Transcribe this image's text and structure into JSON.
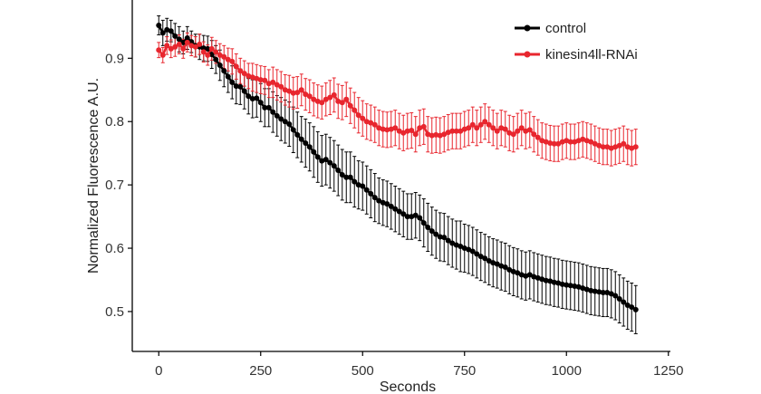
{
  "chart_data": {
    "type": "line",
    "xlabel": "Seconds",
    "ylabel": "Normalized Fluorescence A.U.",
    "xlim": [
      -65,
      1255
    ],
    "ylim": [
      0.437,
      0.992
    ],
    "xticks": [
      0,
      250,
      500,
      750,
      1000,
      1250
    ],
    "yticks": [
      0.5,
      0.6,
      0.7,
      0.8,
      0.9
    ],
    "x_tick_labels": [
      "0",
      "250",
      "500",
      "750",
      "1000",
      "1250"
    ],
    "y_tick_labels": [
      "0.5",
      "0.6",
      "0.7",
      "0.8",
      "0.9"
    ],
    "grid": false,
    "legend_position": "top-right",
    "x_step": 10,
    "x_start": 0,
    "series": [
      {
        "name": "control",
        "color": "#000000",
        "values": [
          0.952,
          0.94,
          0.945,
          0.943,
          0.935,
          0.93,
          0.925,
          0.932,
          0.926,
          0.92,
          0.918,
          0.916,
          0.915,
          0.906,
          0.898,
          0.889,
          0.88,
          0.871,
          0.862,
          0.856,
          0.855,
          0.848,
          0.84,
          0.836,
          0.837,
          0.83,
          0.822,
          0.822,
          0.815,
          0.809,
          0.804,
          0.8,
          0.796,
          0.787,
          0.779,
          0.772,
          0.766,
          0.76,
          0.752,
          0.744,
          0.738,
          0.74,
          0.735,
          0.73,
          0.723,
          0.716,
          0.712,
          0.712,
          0.705,
          0.7,
          0.698,
          0.692,
          0.686,
          0.68,
          0.675,
          0.672,
          0.67,
          0.666,
          0.662,
          0.658,
          0.654,
          0.65,
          0.65,
          0.652,
          0.648,
          0.64,
          0.633,
          0.627,
          0.622,
          0.618,
          0.617,
          0.612,
          0.608,
          0.605,
          0.603,
          0.6,
          0.598,
          0.595,
          0.591,
          0.587,
          0.584,
          0.58,
          0.577,
          0.575,
          0.572,
          0.57,
          0.566,
          0.563,
          0.561,
          0.558,
          0.556,
          0.558,
          0.555,
          0.553,
          0.551,
          0.549,
          0.548,
          0.546,
          0.545,
          0.543,
          0.542,
          0.541,
          0.54,
          0.539,
          0.537,
          0.535,
          0.533,
          0.532,
          0.531,
          0.53,
          0.53,
          0.528,
          0.525,
          0.52,
          0.515,
          0.51,
          0.507,
          0.503
        ],
        "errors": [
          0.015,
          0.02,
          0.018,
          0.017,
          0.02,
          0.02,
          0.018,
          0.018,
          0.017,
          0.018,
          0.02,
          0.02,
          0.02,
          0.022,
          0.022,
          0.024,
          0.025,
          0.025,
          0.026,
          0.028,
          0.028,
          0.028,
          0.028,
          0.03,
          0.03,
          0.03,
          0.03,
          0.03,
          0.032,
          0.032,
          0.034,
          0.034,
          0.035,
          0.036,
          0.036,
          0.036,
          0.038,
          0.038,
          0.04,
          0.04,
          0.04,
          0.04,
          0.04,
          0.04,
          0.04,
          0.04,
          0.04,
          0.04,
          0.04,
          0.038,
          0.038,
          0.038,
          0.038,
          0.038,
          0.036,
          0.036,
          0.036,
          0.036,
          0.036,
          0.036,
          0.036,
          0.036,
          0.036,
          0.036,
          0.036,
          0.038,
          0.038,
          0.038,
          0.038,
          0.038,
          0.038,
          0.038,
          0.038,
          0.038,
          0.04,
          0.038,
          0.038,
          0.038,
          0.038,
          0.038,
          0.038,
          0.038,
          0.038,
          0.038,
          0.038,
          0.038,
          0.038,
          0.038,
          0.038,
          0.038,
          0.038,
          0.038,
          0.038,
          0.038,
          0.038,
          0.038,
          0.038,
          0.038,
          0.038,
          0.038,
          0.038,
          0.038,
          0.038,
          0.038,
          0.038,
          0.038,
          0.038,
          0.038,
          0.038,
          0.038,
          0.038,
          0.038,
          0.038,
          0.038,
          0.038,
          0.038,
          0.038,
          0.038
        ]
      },
      {
        "name": "kinesin4ll-RNAi",
        "color": "#e8262e",
        "values": [
          0.913,
          0.905,
          0.92,
          0.915,
          0.918,
          0.922,
          0.915,
          0.925,
          0.92,
          0.918,
          0.922,
          0.91,
          0.905,
          0.915,
          0.91,
          0.905,
          0.902,
          0.898,
          0.895,
          0.887,
          0.88,
          0.876,
          0.872,
          0.87,
          0.868,
          0.866,
          0.865,
          0.86,
          0.862,
          0.858,
          0.855,
          0.85,
          0.848,
          0.845,
          0.846,
          0.85,
          0.843,
          0.84,
          0.835,
          0.832,
          0.83,
          0.835,
          0.838,
          0.842,
          0.832,
          0.83,
          0.835,
          0.825,
          0.818,
          0.81,
          0.805,
          0.8,
          0.798,
          0.795,
          0.79,
          0.788,
          0.787,
          0.788,
          0.79,
          0.785,
          0.782,
          0.785,
          0.786,
          0.78,
          0.79,
          0.792,
          0.78,
          0.778,
          0.779,
          0.778,
          0.78,
          0.783,
          0.785,
          0.785,
          0.785,
          0.788,
          0.79,
          0.795,
          0.79,
          0.795,
          0.8,
          0.795,
          0.79,
          0.785,
          0.79,
          0.788,
          0.782,
          0.78,
          0.785,
          0.79,
          0.785,
          0.787,
          0.78,
          0.775,
          0.77,
          0.768,
          0.766,
          0.765,
          0.765,
          0.768,
          0.77,
          0.768,
          0.768,
          0.77,
          0.772,
          0.77,
          0.768,
          0.765,
          0.762,
          0.76,
          0.76,
          0.758,
          0.76,
          0.762,
          0.765,
          0.76,
          0.758,
          0.76
        ],
        "errors": [
          0.012,
          0.012,
          0.014,
          0.014,
          0.015,
          0.015,
          0.015,
          0.015,
          0.016,
          0.016,
          0.016,
          0.016,
          0.016,
          0.018,
          0.018,
          0.018,
          0.018,
          0.018,
          0.02,
          0.02,
          0.02,
          0.02,
          0.02,
          0.022,
          0.022,
          0.022,
          0.022,
          0.022,
          0.024,
          0.024,
          0.024,
          0.024,
          0.025,
          0.025,
          0.025,
          0.025,
          0.025,
          0.026,
          0.026,
          0.026,
          0.026,
          0.026,
          0.027,
          0.027,
          0.027,
          0.027,
          0.027,
          0.028,
          0.028,
          0.028,
          0.028,
          0.028,
          0.028,
          0.028,
          0.028,
          0.028,
          0.028,
          0.028,
          0.028,
          0.028,
          0.028,
          0.028,
          0.028,
          0.028,
          0.028,
          0.028,
          0.028,
          0.028,
          0.028,
          0.028,
          0.028,
          0.028,
          0.028,
          0.028,
          0.028,
          0.028,
          0.028,
          0.028,
          0.028,
          0.028,
          0.028,
          0.028,
          0.028,
          0.028,
          0.028,
          0.028,
          0.028,
          0.028,
          0.028,
          0.028,
          0.028,
          0.028,
          0.028,
          0.028,
          0.028,
          0.028,
          0.028,
          0.028,
          0.028,
          0.028,
          0.028,
          0.028,
          0.028,
          0.028,
          0.028,
          0.028,
          0.028,
          0.028,
          0.028,
          0.028,
          0.028,
          0.028,
          0.028,
          0.028,
          0.028,
          0.028,
          0.028,
          0.028
        ]
      }
    ]
  }
}
